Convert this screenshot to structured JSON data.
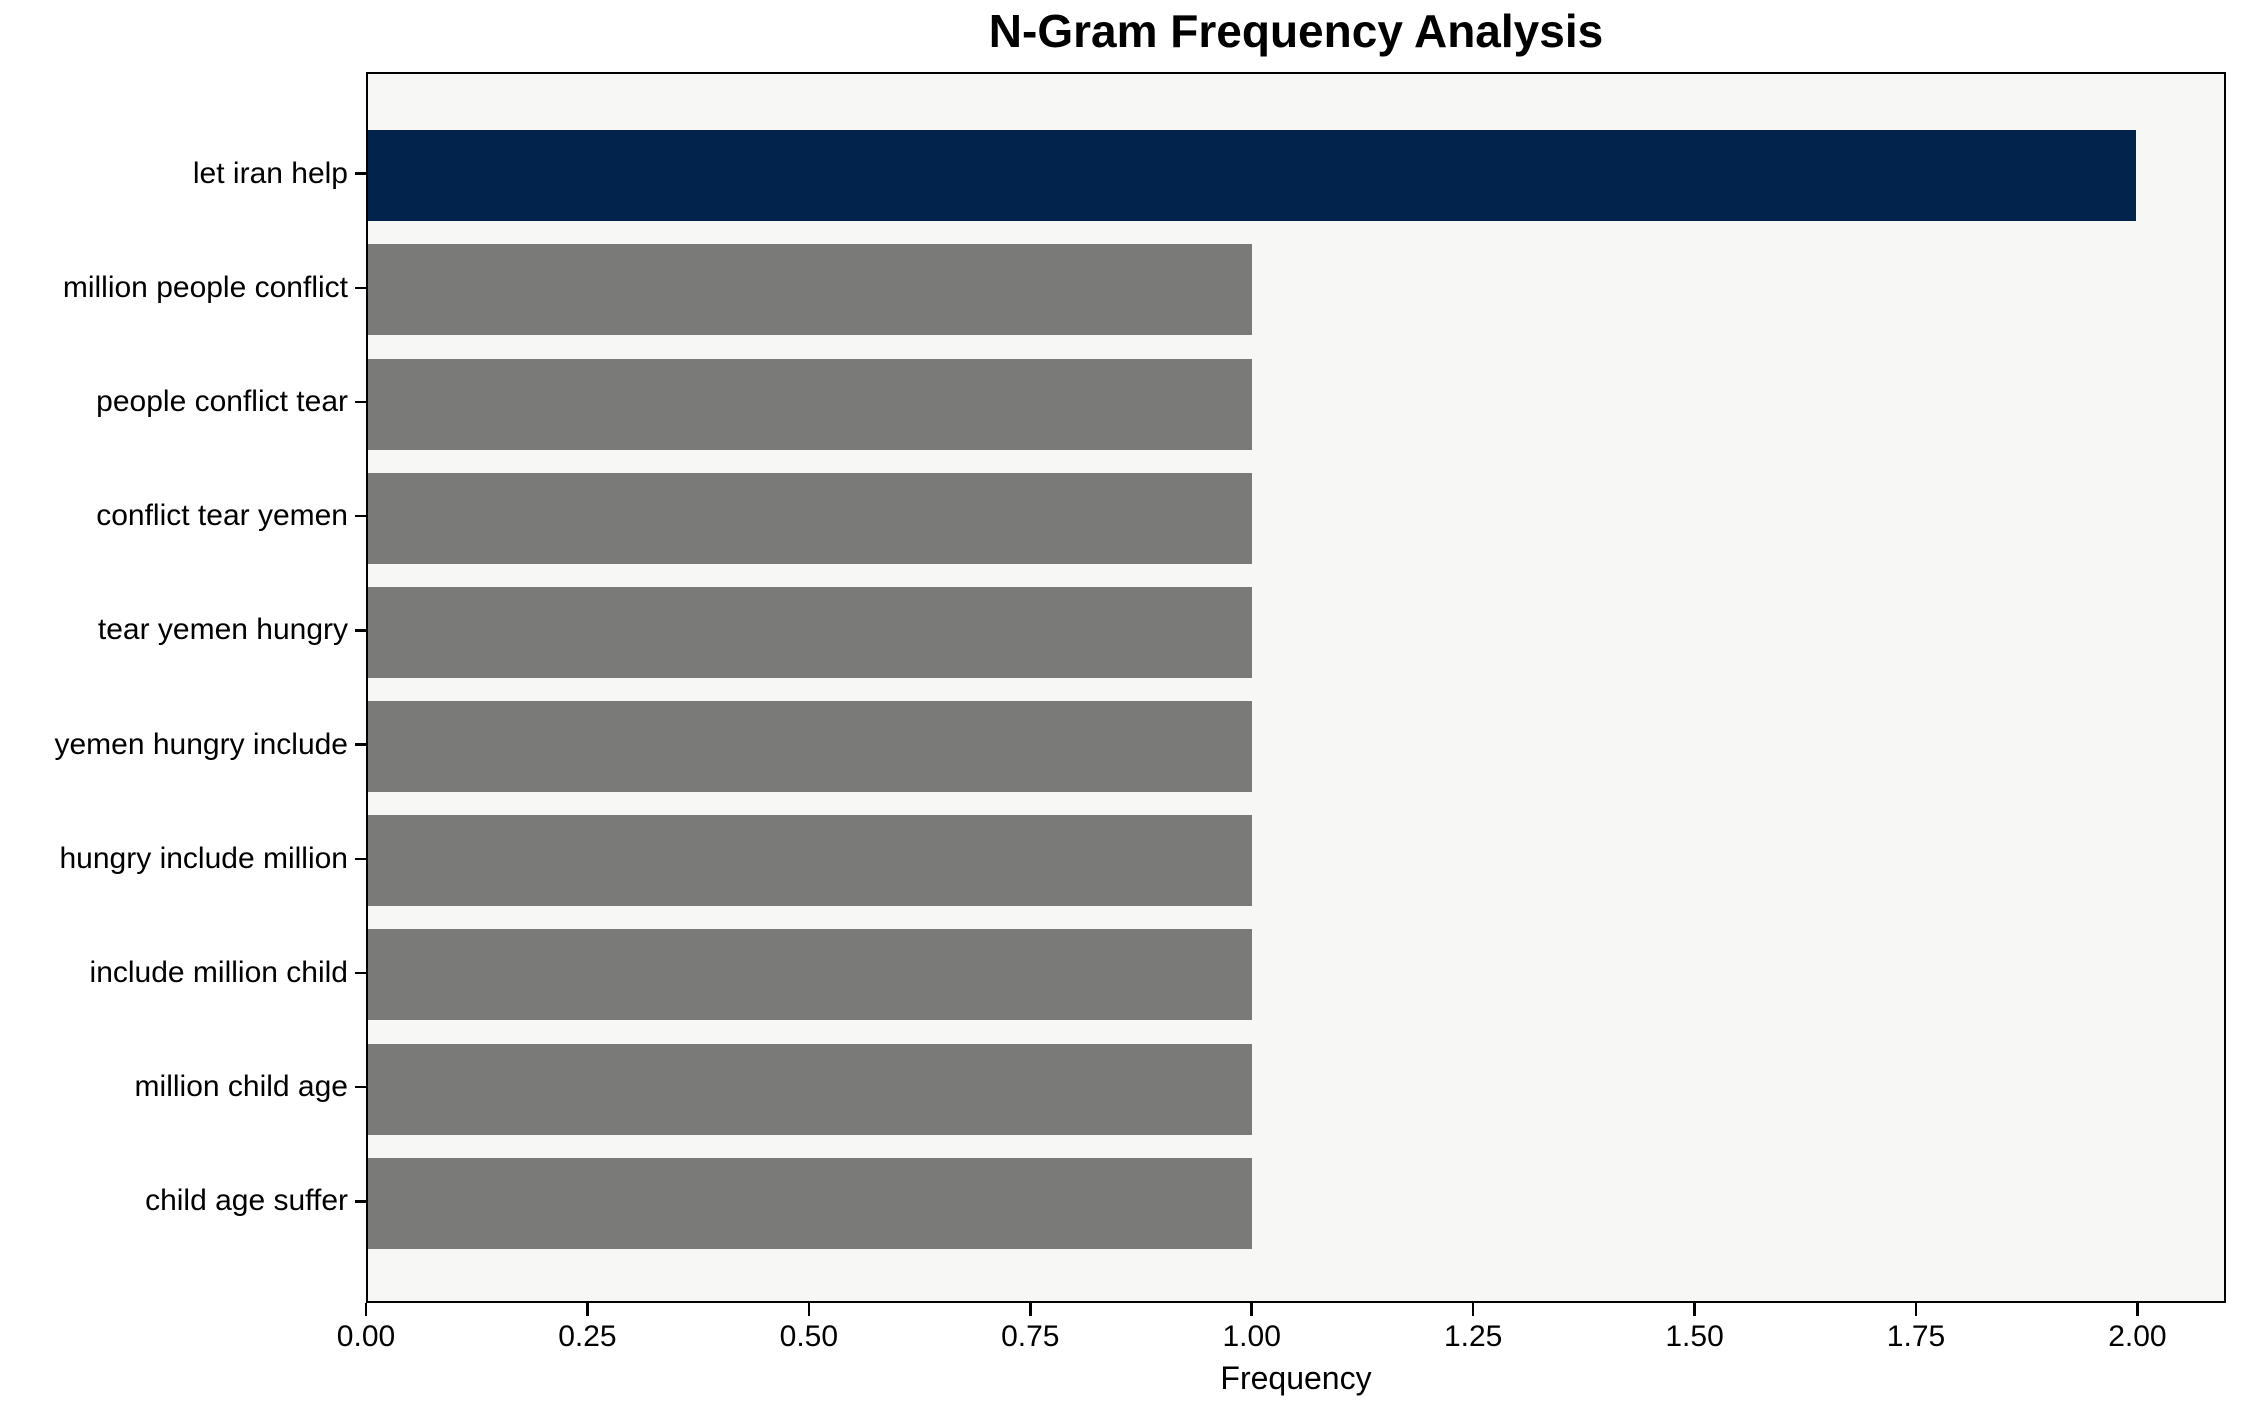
{
  "chart_data": {
    "type": "bar",
    "orientation": "horizontal",
    "title": "N-Gram Frequency Analysis",
    "xlabel": "Frequency",
    "ylabel": "",
    "categories": [
      "let iran help",
      "million people conflict",
      "people conflict tear",
      "conflict tear yemen",
      "tear yemen hungry",
      "yemen hungry include",
      "hungry include million",
      "include million child",
      "million child age",
      "child age suffer"
    ],
    "values": [
      2,
      1,
      1,
      1,
      1,
      1,
      1,
      1,
      1,
      1
    ],
    "bar_colors": [
      "#02234c",
      "#7a7a78",
      "#7a7a78",
      "#7a7a78",
      "#7a7a78",
      "#7a7a78",
      "#7a7a78",
      "#7a7a78",
      "#7a7a78",
      "#7a7a78"
    ],
    "highlight_color": "#02234c",
    "default_color": "#7a7a78",
    "xlim": [
      0,
      2.1
    ],
    "xtick_values": [
      0,
      0.25,
      0.5,
      0.75,
      1.0,
      1.25,
      1.5,
      1.75,
      2.0
    ],
    "xtick_labels": [
      "0.00",
      "0.25",
      "0.50",
      "0.75",
      "1.00",
      "1.25",
      "1.50",
      "1.75",
      "2.00"
    ],
    "plot_background": "#f7f7f6",
    "figure_background": "#ffffff",
    "axis_color": "#000000",
    "grid": false,
    "legend": "none"
  }
}
